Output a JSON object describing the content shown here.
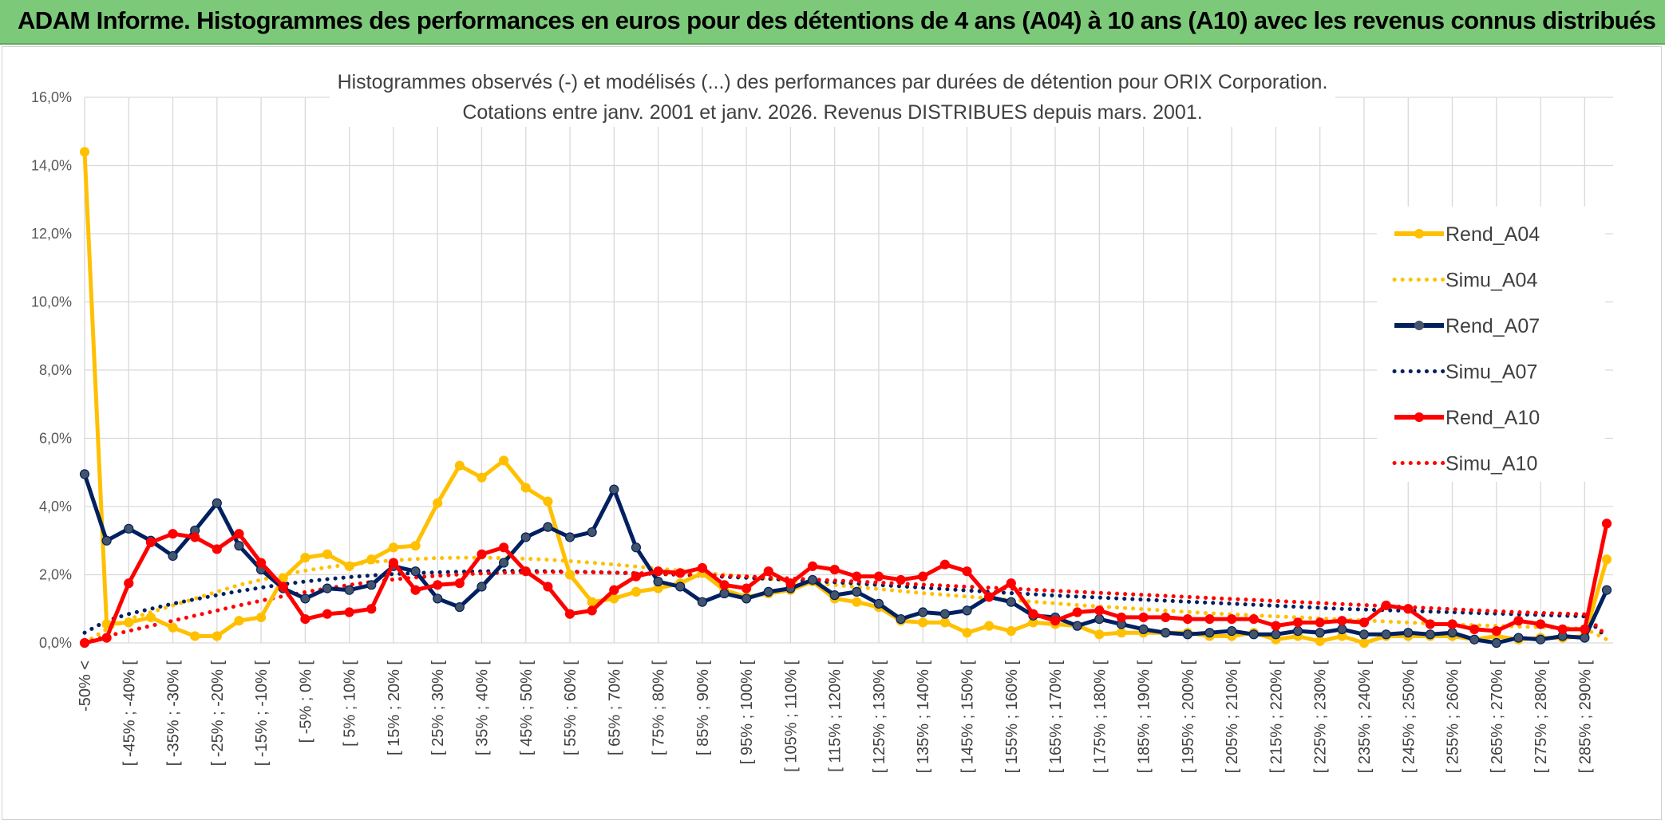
{
  "banner": {
    "title": "ADAM Informe. Histogrammes des performances en euros pour des détentions de 4 ans (A04) à 10 ans (A10) avec les revenus connus distribués"
  },
  "colors": {
    "banner_bg": "#7dc97a",
    "a04": "#ffc000",
    "a07": "#002060",
    "a07_marker": "#44546a",
    "a10": "#ff0000",
    "grid": "#d9d9d9"
  },
  "chart_data": {
    "type": "line",
    "title_lines": [
      "Histogrammes observés (-) et modélisés (...) des performances par durées de détention pour ORIX Corporation.",
      "Cotations entre janv. 2001 et janv. 2026. Revenus DISTRIBUES depuis mars. 2001."
    ],
    "xlabel": "",
    "ylabel": "",
    "ylim": [
      0,
      16
    ],
    "yticks": [
      "0,0%",
      "2,0%",
      "4,0%",
      "6,0%",
      "8,0%",
      "10,0%",
      "12,0%",
      "14,0%",
      "16,0%"
    ],
    "grid": true,
    "legend_position": "right",
    "x_tick_labels": [
      "-50% <",
      "[ -45% ; -40% [",
      "[ -35% ; -30% [",
      "[ -25% ; -20% [",
      "[ -15% ; -10% [",
      "[ -5% ; 0% [",
      "[ 5% ; 10% [",
      "[ 15% ; 20% [",
      "[ 25% ; 30% [",
      "[ 35% ; 40% [",
      "[ 45% ; 50% [",
      "[ 55% ; 60% [",
      "[ 65% ; 70% [",
      "[ 75% ; 80% [",
      "[ 85% ; 90% [",
      "[ 95% ; 100% [",
      "[ 105% ; 110% [",
      "[ 115% ; 120% [",
      "[ 125% ; 130% [",
      "[ 135% ; 140% [",
      "[ 145% ; 150% [",
      "[ 155% ; 160% [",
      "[ 165% ; 170% [",
      "[ 175% ; 180% [",
      "[ 185% ; 190% [",
      "[ 195% ; 200% [",
      "[ 205% ; 210% [",
      "[ 215% ; 220% [",
      "[ 225% ; 230% [",
      "[ 235% ; 240% [",
      "[ 245% ; 250% [",
      "[ 255% ; 260% [",
      "[ 265% ; 270% [",
      "[ 275% ; 280% [",
      "[ 285% ; 290% ["
    ],
    "n_points": 70,
    "series": [
      {
        "name": "Rend_A04",
        "style": "solid-markers",
        "color": "#ffc000",
        "values": [
          14.4,
          0.55,
          0.6,
          0.75,
          0.45,
          0.2,
          0.2,
          0.65,
          0.75,
          1.9,
          2.5,
          2.6,
          2.25,
          2.45,
          2.8,
          2.85,
          4.1,
          5.2,
          4.85,
          5.35,
          4.55,
          4.15,
          2.0,
          1.2,
          1.3,
          1.5,
          1.6,
          1.75,
          2.05,
          1.55,
          1.35,
          1.45,
          1.55,
          1.8,
          1.3,
          1.2,
          1.05,
          0.65,
          0.6,
          0.6,
          0.3,
          0.5,
          0.35,
          0.6,
          0.55,
          0.5,
          0.25,
          0.3,
          0.3,
          0.3,
          0.3,
          0.2,
          0.2,
          0.3,
          0.1,
          0.2,
          0.05,
          0.2,
          0.0,
          0.2,
          0.2,
          0.2,
          0.2,
          0.1,
          0.2,
          0.1,
          0.15,
          0.15,
          0.2,
          2.45
        ]
      },
      {
        "name": "Simu_A04",
        "style": "dotted",
        "color": "#ffc000",
        "values": [
          0.0,
          0.4,
          0.7,
          0.9,
          1.1,
          1.3,
          1.5,
          1.7,
          1.85,
          2.0,
          2.12,
          2.22,
          2.3,
          2.37,
          2.42,
          2.46,
          2.49,
          2.5,
          2.5,
          2.49,
          2.47,
          2.44,
          2.4,
          2.35,
          2.3,
          2.24,
          2.18,
          2.12,
          2.06,
          2.0,
          1.94,
          1.88,
          1.82,
          1.76,
          1.7,
          1.64,
          1.58,
          1.52,
          1.46,
          1.41,
          1.36,
          1.31,
          1.26,
          1.21,
          1.16,
          1.11,
          1.07,
          1.03,
          0.99,
          0.95,
          0.91,
          0.87,
          0.84,
          0.81,
          0.78,
          0.75,
          0.72,
          0.69,
          0.66,
          0.63,
          0.6,
          0.57,
          0.54,
          0.52,
          0.5,
          0.48,
          0.46,
          0.44,
          0.42,
          0.1
        ]
      },
      {
        "name": "Rend_A07",
        "style": "solid-markers",
        "color": "#002060",
        "marker": "#44546a",
        "values": [
          4.95,
          3.0,
          3.35,
          3.0,
          2.55,
          3.3,
          4.1,
          2.85,
          2.15,
          1.6,
          1.3,
          1.6,
          1.55,
          1.7,
          2.25,
          2.1,
          1.3,
          1.05,
          1.65,
          2.35,
          3.1,
          3.4,
          3.1,
          3.25,
          4.5,
          2.8,
          1.8,
          1.65,
          1.2,
          1.45,
          1.3,
          1.5,
          1.6,
          1.85,
          1.4,
          1.5,
          1.15,
          0.7,
          0.9,
          0.85,
          0.95,
          1.35,
          1.2,
          0.8,
          0.75,
          0.5,
          0.7,
          0.55,
          0.4,
          0.3,
          0.25,
          0.3,
          0.35,
          0.25,
          0.25,
          0.35,
          0.3,
          0.4,
          0.25,
          0.25,
          0.3,
          0.25,
          0.3,
          0.1,
          0.0,
          0.15,
          0.1,
          0.2,
          0.15,
          1.55
        ]
      },
      {
        "name": "Simu_A07",
        "style": "dotted",
        "color": "#002060",
        "values": [
          0.3,
          0.65,
          0.85,
          1.0,
          1.15,
          1.28,
          1.4,
          1.52,
          1.62,
          1.72,
          1.8,
          1.87,
          1.93,
          1.98,
          2.02,
          2.05,
          2.07,
          2.09,
          2.1,
          2.11,
          2.11,
          2.1,
          2.09,
          2.08,
          2.06,
          2.04,
          2.02,
          2.0,
          1.97,
          1.94,
          1.91,
          1.88,
          1.85,
          1.81,
          1.78,
          1.74,
          1.7,
          1.66,
          1.62,
          1.58,
          1.54,
          1.5,
          1.46,
          1.43,
          1.39,
          1.36,
          1.33,
          1.3,
          1.27,
          1.24,
          1.21,
          1.18,
          1.15,
          1.12,
          1.09,
          1.06,
          1.03,
          1.0,
          0.98,
          0.96,
          0.94,
          0.92,
          0.9,
          0.88,
          0.86,
          0.84,
          0.82,
          0.8,
          0.78,
          0.15
        ]
      },
      {
        "name": "Rend_A10",
        "style": "solid-markers",
        "color": "#ff0000",
        "values": [
          0.0,
          0.15,
          1.75,
          2.95,
          3.2,
          3.1,
          2.75,
          3.2,
          2.35,
          1.65,
          0.7,
          0.85,
          0.9,
          1.0,
          2.35,
          1.55,
          1.7,
          1.75,
          2.6,
          2.8,
          2.1,
          1.65,
          0.85,
          0.95,
          1.55,
          1.95,
          2.1,
          2.05,
          2.2,
          1.7,
          1.6,
          2.1,
          1.75,
          2.25,
          2.15,
          1.95,
          1.95,
          1.85,
          1.95,
          2.3,
          2.1,
          1.35,
          1.75,
          0.85,
          0.65,
          0.9,
          0.95,
          0.75,
          0.75,
          0.75,
          0.7,
          0.7,
          0.7,
          0.7,
          0.5,
          0.6,
          0.6,
          0.65,
          0.6,
          1.1,
          1.0,
          0.55,
          0.55,
          0.4,
          0.35,
          0.65,
          0.55,
          0.4,
          0.4,
          3.5
        ]
      },
      {
        "name": "Simu_A10",
        "style": "dotted",
        "color": "#ff0000",
        "values": [
          0.0,
          0.2,
          0.35,
          0.5,
          0.65,
          0.8,
          0.95,
          1.1,
          1.24,
          1.37,
          1.49,
          1.6,
          1.7,
          1.79,
          1.86,
          1.92,
          1.97,
          2.01,
          2.04,
          2.06,
          2.07,
          2.08,
          2.08,
          2.07,
          2.06,
          2.05,
          2.03,
          2.01,
          1.99,
          1.97,
          1.95,
          1.92,
          1.89,
          1.86,
          1.83,
          1.8,
          1.77,
          1.74,
          1.71,
          1.68,
          1.65,
          1.62,
          1.59,
          1.56,
          1.53,
          1.5,
          1.47,
          1.44,
          1.41,
          1.38,
          1.35,
          1.32,
          1.29,
          1.26,
          1.23,
          1.2,
          1.17,
          1.14,
          1.11,
          1.08,
          1.05,
          1.02,
          0.99,
          0.96,
          0.93,
          0.9,
          0.88,
          0.86,
          0.84,
          0.2
        ]
      }
    ]
  }
}
